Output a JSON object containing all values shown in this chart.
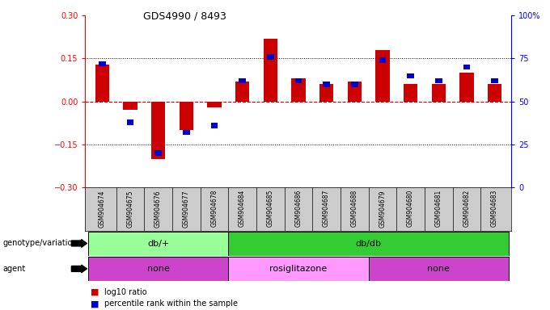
{
  "title": "GDS4990 / 8493",
  "samples": [
    "GSM904674",
    "GSM904675",
    "GSM904676",
    "GSM904677",
    "GSM904678",
    "GSM904684",
    "GSM904685",
    "GSM904686",
    "GSM904687",
    "GSM904688",
    "GSM904679",
    "GSM904680",
    "GSM904681",
    "GSM904682",
    "GSM904683"
  ],
  "log10_ratio": [
    0.13,
    -0.03,
    -0.2,
    -0.1,
    -0.02,
    0.07,
    0.22,
    0.08,
    0.06,
    0.07,
    0.18,
    0.06,
    0.06,
    0.1,
    0.06
  ],
  "percentile": [
    72,
    38,
    20,
    32,
    36,
    62,
    76,
    62,
    60,
    60,
    74,
    65,
    62,
    70,
    62
  ],
  "ylim": [
    -0.3,
    0.3
  ],
  "yticks_left": [
    -0.3,
    -0.15,
    0.0,
    0.15,
    0.3
  ],
  "yticks_right": [
    0,
    25,
    50,
    75,
    100
  ],
  "bar_color": "#cc0000",
  "dot_color": "#0000cc",
  "hline_color": "#cc0000",
  "grid_color": "#000000",
  "genotype_groups": [
    {
      "label": "db/+",
      "start": 0,
      "end": 5,
      "color": "#99ff99"
    },
    {
      "label": "db/db",
      "start": 5,
      "end": 15,
      "color": "#33cc33"
    }
  ],
  "agent_groups": [
    {
      "label": "none",
      "start": 0,
      "end": 5,
      "color": "#cc44cc"
    },
    {
      "label": "rosiglitazone",
      "start": 5,
      "end": 10,
      "color": "#ff99ff"
    },
    {
      "label": "none",
      "start": 10,
      "end": 15,
      "color": "#cc44cc"
    }
  ],
  "genotype_label": "genotype/variation",
  "agent_label": "agent",
  "legend_red": "log10 ratio",
  "legend_blue": "percentile rank within the sample",
  "background_color": "#ffffff",
  "tick_bg_color": "#cccccc"
}
